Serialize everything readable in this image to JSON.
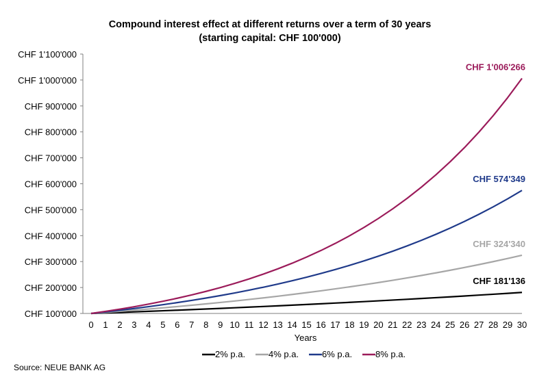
{
  "chart_data": {
    "type": "line",
    "title": [
      "Compound interest effect at different returns over a term of 30 years",
      "(starting capital: CHF 100'000)"
    ],
    "xlabel": "Years",
    "ylabel": "",
    "x": [
      0,
      1,
      2,
      3,
      4,
      5,
      6,
      7,
      8,
      9,
      10,
      11,
      12,
      13,
      14,
      15,
      16,
      17,
      18,
      19,
      20,
      21,
      22,
      23,
      24,
      25,
      26,
      27,
      28,
      29,
      30
    ],
    "xticks": [
      "0",
      "1",
      "2",
      "3",
      "4",
      "5",
      "6",
      "7",
      "8",
      "9",
      "10",
      "11",
      "12",
      "13",
      "14",
      "15",
      "16",
      "17",
      "18",
      "19",
      "20",
      "21",
      "22",
      "23",
      "24",
      "25",
      "26",
      "27",
      "28",
      "29",
      "30"
    ],
    "ylim": [
      100000,
      1100000
    ],
    "yticks": [
      {
        "value": 100000,
        "label": "CHF 100'000"
      },
      {
        "value": 200000,
        "label": "CHF 200'000"
      },
      {
        "value": 300000,
        "label": "CHF 300'000"
      },
      {
        "value": 400000,
        "label": "CHF 400'000"
      },
      {
        "value": 500000,
        "label": "CHF 500'000"
      },
      {
        "value": 600000,
        "label": "CHF 600'000"
      },
      {
        "value": 700000,
        "label": "CHF 700'000"
      },
      {
        "value": 800000,
        "label": "CHF 800'000"
      },
      {
        "value": 900000,
        "label": "CHF 900'000"
      },
      {
        "value": 1000000,
        "label": "CHF 1'000'000"
      },
      {
        "value": 1100000,
        "label": "CHF 1'100'000"
      }
    ],
    "grid": false,
    "legend_position": "bottom",
    "series": [
      {
        "name": "2% p.a.",
        "rate": 0.02,
        "color": "#000000",
        "end_label": "CHF 181'136",
        "end_value": 181136
      },
      {
        "name": "4% p.a.",
        "rate": 0.04,
        "color": "#a6a6a6",
        "end_label": "CHF 324'340",
        "end_value": 324340
      },
      {
        "name": "6% p.a.",
        "rate": 0.06,
        "color": "#1f3a8a",
        "end_label": "CHF 574'349",
        "end_value": 574349
      },
      {
        "name": "8% p.a.",
        "rate": 0.08,
        "color": "#9b1b5a",
        "end_label": "CHF 1'006'266",
        "end_value": 1006266
      }
    ],
    "start_value": 100000
  },
  "source": "Source: NEUE BANK AG"
}
